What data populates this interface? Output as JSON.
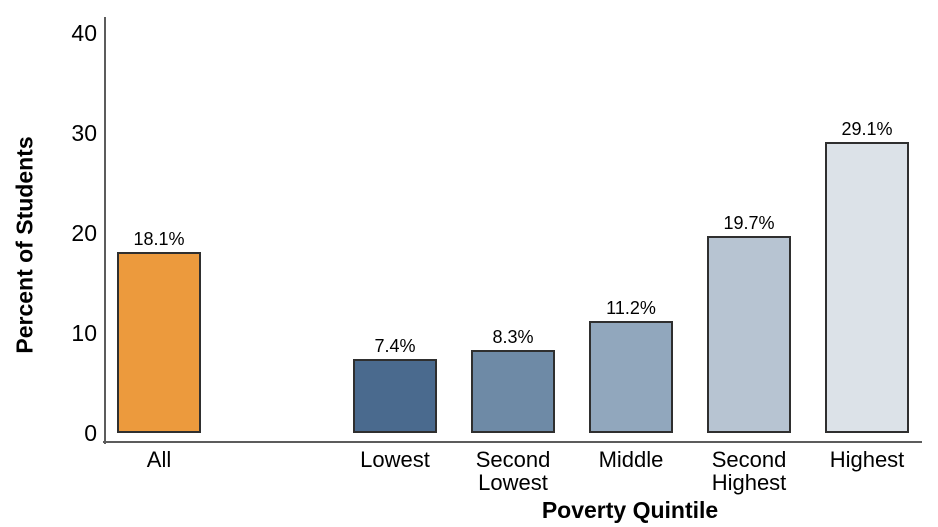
{
  "chart_data": {
    "type": "bar",
    "xlabel": "Poverty Quintile",
    "ylabel": "Percent of Students",
    "categories": [
      "All",
      "Lowest",
      "Second\nLowest",
      "Middle",
      "Second\nHighest",
      "Highest"
    ],
    "values": [
      18.1,
      7.4,
      8.3,
      11.2,
      19.7,
      29.1
    ],
    "value_labels": [
      "18.1%",
      "7.4%",
      "8.3%",
      "11.2%",
      "19.7%",
      "29.1%"
    ],
    "slots": [
      0,
      2,
      3,
      4,
      5,
      6
    ],
    "yticks": [
      "0",
      "10",
      "20",
      "30",
      "40"
    ],
    "ytick_values": [
      0,
      10,
      20,
      30,
      40
    ],
    "ylim": [
      0,
      40
    ],
    "grid": false,
    "legend": "none",
    "colors": {
      "bars": [
        "#EC9A3D",
        "#4A6A8E",
        "#6E8AA6",
        "#91A7BD",
        "#B7C4D2",
        "#DCE2E8"
      ],
      "bar_border": "#2F2F2F",
      "axis": "#5C5C5C",
      "text": "#000000",
      "background": "#FFFFFF"
    }
  }
}
